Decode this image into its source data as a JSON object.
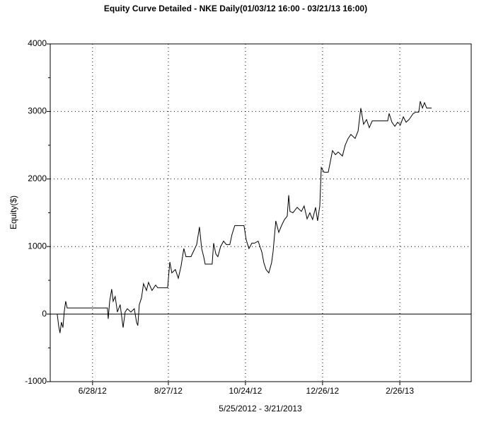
{
  "chart_data": {
    "type": "line",
    "title": "Equity Curve Detailed - NKE Daily(01/03/12 16:00 - 03/21/13 16:00)",
    "xlabel": "5/25/2012 - 3/21/2013",
    "ylabel": "Equity($)",
    "color": "#000000",
    "grid": true,
    "zero_line": true,
    "xlim": [
      -3.8,
      225
    ],
    "ylim": [
      -1000,
      4000
    ],
    "xticks": [
      {
        "value": 19.2,
        "label": "6/28/12"
      },
      {
        "value": 60.4,
        "label": "8/27/12"
      },
      {
        "value": 102.3,
        "label": "10/24/12"
      },
      {
        "value": 144.2,
        "label": "12/26/12"
      },
      {
        "value": 186.2,
        "label": "2/26/13"
      }
    ],
    "yticks": [
      -1000,
      0,
      1000,
      2000,
      3000,
      4000
    ],
    "yminorticks": [
      -500,
      500,
      1500,
      2500,
      3500
    ],
    "x": [
      0,
      0.8,
      1.5,
      2.3,
      3.1,
      3.8,
      4.6,
      5.4,
      27.3,
      27.7,
      28.5,
      29.6,
      30.4,
      31.5,
      32.7,
      34.2,
      35.8,
      36.9,
      38.1,
      40,
      41.9,
      43.1,
      43.8,
      44.6,
      45.8,
      46.9,
      48.5,
      49.6,
      51.5,
      53.5,
      54.6,
      60,
      61.2,
      62.3,
      64.2,
      65.8,
      67.3,
      68.8,
      70,
      72.7,
      75.8,
      77.3,
      78.5,
      79.6,
      80.4,
      84.2,
      85,
      86.2,
      87.3,
      88.8,
      90.4,
      91.9,
      93.8,
      95,
      96.5,
      101.5,
      102.7,
      104.2,
      105.8,
      107.3,
      109.2,
      111.2,
      112.3,
      113.5,
      115,
      116.5,
      117.3,
      118.8,
      120.4,
      121.9,
      123.5,
      125,
      125.8,
      126.5,
      128.1,
      130.4,
      132.7,
      134.2,
      135.8,
      137.3,
      138.8,
      140.4,
      141.5,
      142.7,
      143.5,
      145,
      147.3,
      148.1,
      149.6,
      151.2,
      152.7,
      155,
      156.5,
      158.1,
      159.6,
      161.9,
      163.5,
      165,
      166.5,
      168.1,
      169.6,
      171.2,
      172.7,
      176.5,
      179.6,
      180.4,
      181.9,
      183.5,
      185,
      186.5,
      188.1,
      189.6,
      191.2,
      193.5,
      195,
      196.5,
      197.3,
      198.5,
      199.6,
      200.8,
      203.5
    ],
    "values": [
      0,
      -180,
      -280,
      -120,
      -200,
      30,
      190,
      90,
      90,
      -70,
      190,
      370,
      190,
      260,
      30,
      140,
      -200,
      30,
      80,
      30,
      80,
      -120,
      -170,
      140,
      240,
      450,
      350,
      470,
      350,
      430,
      390,
      390,
      770,
      610,
      660,
      530,
      710,
      970,
      850,
      850,
      1030,
      1290,
      970,
      850,
      740,
      740,
      1050,
      890,
      850,
      1000,
      1080,
      1030,
      1030,
      1180,
      1310,
      1310,
      1100,
      970,
      1050,
      1050,
      1080,
      920,
      760,
      660,
      610,
      760,
      920,
      1380,
      1210,
      1310,
      1400,
      1450,
      1760,
      1520,
      1500,
      1580,
      1520,
      1600,
      1410,
      1500,
      1400,
      1580,
      1380,
      1600,
      2170,
      2100,
      2100,
      2210,
      2420,
      2360,
      2400,
      2340,
      2500,
      2600,
      2660,
      2600,
      2710,
      3050,
      2810,
      2880,
      2760,
      2860,
      2860,
      2860,
      2860,
      2970,
      2840,
      2780,
      2840,
      2800,
      2920,
      2840,
      2880,
      2970,
      2990,
      2990,
      3150,
      3050,
      3130,
      3050,
      3050
    ]
  }
}
